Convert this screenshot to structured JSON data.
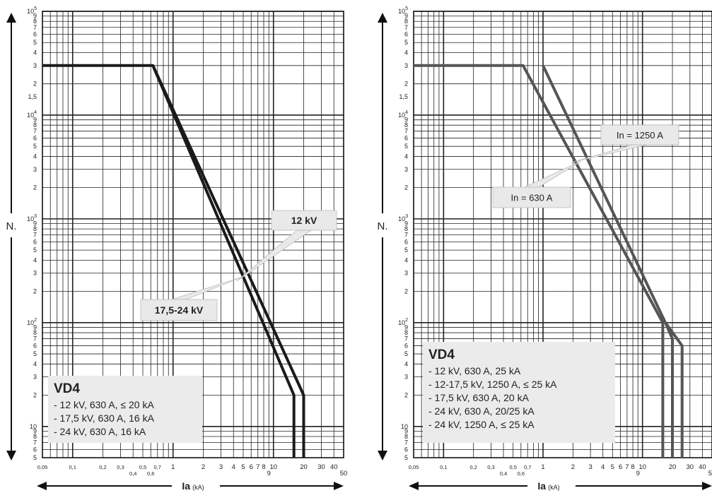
{
  "chart_data": [
    {
      "type": "line",
      "xscale": "log",
      "yscale": "log",
      "xlim": [
        0.05,
        50
      ],
      "ylim": [
        5,
        100000
      ],
      "xlabel": "Ia",
      "xunit": "(kA)",
      "ylabel": "N.",
      "y_ticks": [
        {
          "v": 100000,
          "m": "10",
          "e": "5"
        },
        {
          "v": 90000,
          "m": "9"
        },
        {
          "v": 80000,
          "m": "8"
        },
        {
          "v": 70000,
          "m": "7"
        },
        {
          "v": 60000,
          "m": "6"
        },
        {
          "v": 50000,
          "m": "5"
        },
        {
          "v": 40000,
          "m": "4"
        },
        {
          "v": 30000,
          "m": "3"
        },
        {
          "v": 20000,
          "m": "2"
        },
        {
          "v": 15000,
          "m": "1,5"
        },
        {
          "v": 10000,
          "m": "10",
          "e": "4"
        },
        {
          "v": 9000,
          "m": "9"
        },
        {
          "v": 8000,
          "m": "8"
        },
        {
          "v": 7000,
          "m": "7"
        },
        {
          "v": 6000,
          "m": "6"
        },
        {
          "v": 5000,
          "m": "5"
        },
        {
          "v": 4000,
          "m": "4"
        },
        {
          "v": 3000,
          "m": "3"
        },
        {
          "v": 2000,
          "m": "2"
        },
        {
          "v": 1000,
          "m": "10",
          "e": "3"
        },
        {
          "v": 900,
          "m": "9"
        },
        {
          "v": 800,
          "m": "8"
        },
        {
          "v": 700,
          "m": "7"
        },
        {
          "v": 600,
          "m": "6"
        },
        {
          "v": 500,
          "m": "5"
        },
        {
          "v": 400,
          "m": "4"
        },
        {
          "v": 300,
          "m": "3"
        },
        {
          "v": 200,
          "m": "2"
        },
        {
          "v": 100,
          "m": "10",
          "e": "2"
        },
        {
          "v": 90,
          "m": "9"
        },
        {
          "v": 80,
          "m": "8"
        },
        {
          "v": 70,
          "m": "7"
        },
        {
          "v": 60,
          "m": "6"
        },
        {
          "v": 50,
          "m": "5"
        },
        {
          "v": 40,
          "m": "4"
        },
        {
          "v": 30,
          "m": "3"
        },
        {
          "v": 20,
          "m": "2"
        },
        {
          "v": 10,
          "m": "10"
        },
        {
          "v": 9,
          "m": "9"
        },
        {
          "v": 8,
          "m": "8"
        },
        {
          "v": 7,
          "m": "7"
        },
        {
          "v": 6,
          "m": "6"
        },
        {
          "v": 5,
          "m": "5"
        }
      ],
      "x_ticks": [
        {
          "v": 0.05,
          "t": "0,05"
        },
        {
          "v": 0.1,
          "t": "0,1"
        },
        {
          "v": 0.2,
          "t": "0,2"
        },
        {
          "v": 0.3,
          "t": "0,3"
        },
        {
          "v": 0.4,
          "t": "0,4",
          "low": true
        },
        {
          "v": 0.5,
          "t": "0,5"
        },
        {
          "v": 0.6,
          "t": "0,6",
          "low": true
        },
        {
          "v": 0.7,
          "t": "0,7"
        },
        {
          "v": 1,
          "t": "1"
        },
        {
          "v": 2,
          "t": "2"
        },
        {
          "v": 3,
          "t": "3"
        },
        {
          "v": 4,
          "t": "4"
        },
        {
          "v": 5,
          "t": "5"
        },
        {
          "v": 6,
          "t": "6"
        },
        {
          "v": 7,
          "t": "7"
        },
        {
          "v": 8,
          "t": "8"
        },
        {
          "v": 9,
          "t": "9",
          "low": true
        },
        {
          "v": 10,
          "t": "10"
        },
        {
          "v": 20,
          "t": "20"
        },
        {
          "v": 30,
          "t": "30"
        },
        {
          "v": 40,
          "t": "40"
        },
        {
          "v": 50,
          "t": "50",
          "low": true
        }
      ],
      "series": [
        {
          "name": "12 kV",
          "points": [
            [
              0.05,
              30000
            ],
            [
              0.63,
              30000
            ],
            [
              20,
              20
            ],
            [
              20,
              5
            ]
          ]
        },
        {
          "name": "17,5-24 kV",
          "points": [
            [
              0.63,
              30000
            ],
            [
              16,
              20
            ],
            [
              16,
              5
            ]
          ]
        }
      ],
      "callouts": [
        {
          "text": "12 kV"
        },
        {
          "text": "17,5-24 kV"
        }
      ],
      "legend_title": "VD4",
      "legend_lines": [
        "- 12 kV, 630 A, ≤ 20 kA",
        "- 17,5 kV, 630 A, 16 kA",
        "- 24 kV, 630 A, 16 kA"
      ]
    },
    {
      "type": "line",
      "xscale": "log",
      "yscale": "log",
      "xlim": [
        0.05,
        50
      ],
      "ylim": [
        5,
        100000
      ],
      "xlabel": "Ia",
      "xunit": "(kA)",
      "ylabel": "N.",
      "y_ticks": [
        {
          "v": 100000,
          "m": "10",
          "e": "5"
        },
        {
          "v": 90000,
          "m": "9"
        },
        {
          "v": 80000,
          "m": "8"
        },
        {
          "v": 70000,
          "m": "7"
        },
        {
          "v": 60000,
          "m": "6"
        },
        {
          "v": 50000,
          "m": "5"
        },
        {
          "v": 40000,
          "m": "4"
        },
        {
          "v": 30000,
          "m": "3"
        },
        {
          "v": 20000,
          "m": "2"
        },
        {
          "v": 15000,
          "m": "1,5"
        },
        {
          "v": 10000,
          "m": "10",
          "e": "4"
        },
        {
          "v": 9000,
          "m": "9"
        },
        {
          "v": 8000,
          "m": "8"
        },
        {
          "v": 7000,
          "m": "7"
        },
        {
          "v": 6000,
          "m": "6"
        },
        {
          "v": 5000,
          "m": "5"
        },
        {
          "v": 4000,
          "m": "4"
        },
        {
          "v": 3000,
          "m": "3"
        },
        {
          "v": 2000,
          "m": "2"
        },
        {
          "v": 1000,
          "m": "10",
          "e": "3"
        },
        {
          "v": 900,
          "m": "9"
        },
        {
          "v": 800,
          "m": "8"
        },
        {
          "v": 700,
          "m": "7"
        },
        {
          "v": 600,
          "m": "6"
        },
        {
          "v": 500,
          "m": "5"
        },
        {
          "v": 400,
          "m": "4"
        },
        {
          "v": 300,
          "m": "3"
        },
        {
          "v": 200,
          "m": "2"
        },
        {
          "v": 100,
          "m": "10",
          "e": "2"
        },
        {
          "v": 90,
          "m": "9"
        },
        {
          "v": 80,
          "m": "8"
        },
        {
          "v": 70,
          "m": "7"
        },
        {
          "v": 60,
          "m": "6"
        },
        {
          "v": 50,
          "m": "5"
        },
        {
          "v": 40,
          "m": "4"
        },
        {
          "v": 30,
          "m": "3"
        },
        {
          "v": 20,
          "m": "2"
        },
        {
          "v": 10,
          "m": "10"
        },
        {
          "v": 9,
          "m": "9"
        },
        {
          "v": 8,
          "m": "8"
        },
        {
          "v": 7,
          "m": "7"
        },
        {
          "v": 6,
          "m": "6"
        },
        {
          "v": 5,
          "m": "5"
        }
      ],
      "x_ticks": [
        {
          "v": 0.05,
          "t": "0,05"
        },
        {
          "v": 0.1,
          "t": "0,1"
        },
        {
          "v": 0.2,
          "t": "0,2"
        },
        {
          "v": 0.3,
          "t": "0,3"
        },
        {
          "v": 0.4,
          "t": "0,4",
          "low": true
        },
        {
          "v": 0.5,
          "t": "0,5"
        },
        {
          "v": 0.6,
          "t": "0,6",
          "low": true
        },
        {
          "v": 0.7,
          "t": "0,7"
        },
        {
          "v": 1,
          "t": "1"
        },
        {
          "v": 2,
          "t": "2"
        },
        {
          "v": 3,
          "t": "3"
        },
        {
          "v": 4,
          "t": "4"
        },
        {
          "v": 5,
          "t": "5"
        },
        {
          "v": 6,
          "t": "6"
        },
        {
          "v": 7,
          "t": "7"
        },
        {
          "v": 8,
          "t": "8"
        },
        {
          "v": 9,
          "t": "9",
          "low": true
        },
        {
          "v": 10,
          "t": "10"
        },
        {
          "v": 20,
          "t": "20"
        },
        {
          "v": 30,
          "t": "30"
        },
        {
          "v": 40,
          "t": "40"
        },
        {
          "v": 50,
          "t": "50",
          "low": true
        }
      ],
      "series": [
        {
          "name": "In = 630 A",
          "points": [
            [
              0.05,
              30000
            ],
            [
              0.63,
              30000
            ],
            [
              16,
              100
            ],
            [
              16,
              5
            ]
          ]
        },
        {
          "name": "In = 1250 A",
          "points": [
            [
              1.0,
              30000
            ],
            [
              17,
              100
            ],
            [
              25,
              60
            ],
            [
              25,
              5
            ]
          ]
        },
        {
          "points": [
            [
              17,
              100
            ],
            [
              20,
              70
            ],
            [
              20,
              5
            ]
          ]
        }
      ],
      "callouts": [
        {
          "text": "In = 1250 A"
        },
        {
          "text": "In = 630 A"
        }
      ],
      "legend_title": "VD4",
      "legend_lines": [
        "- 12 kV, 630 A, 25 kA",
        "- 12-17,5 kV, 1250 A, ≤ 25 kA",
        "- 17,5 kV, 630 A, 20 kA",
        "- 24 kV, 630 A, 20/25 kA",
        "- 24 kV, 1250 A, ≤ 25 kA"
      ]
    }
  ]
}
